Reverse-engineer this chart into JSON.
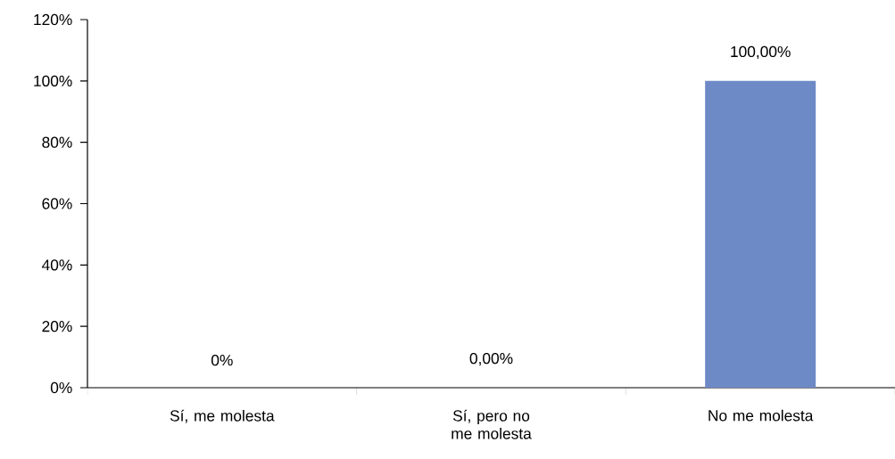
{
  "chart_data": {
    "type": "bar",
    "categories": [
      "Sí, me molesta",
      "Sí, pero no me molesta",
      "No me molesta"
    ],
    "values": [
      0,
      0,
      100
    ],
    "value_labels": [
      "0%",
      "0,00%",
      "100,00%"
    ],
    "color": "#6d89c6",
    "ylim": [
      0,
      120
    ],
    "yticks": [
      {
        "value": 0,
        "label": "0%"
      },
      {
        "value": 20,
        "label": "20%"
      },
      {
        "value": 40,
        "label": "40%"
      },
      {
        "value": 60,
        "label": "60%"
      },
      {
        "value": 80,
        "label": "80%"
      },
      {
        "value": 100,
        "label": "100%"
      },
      {
        "value": 120,
        "label": "120%"
      }
    ],
    "grid": false
  }
}
